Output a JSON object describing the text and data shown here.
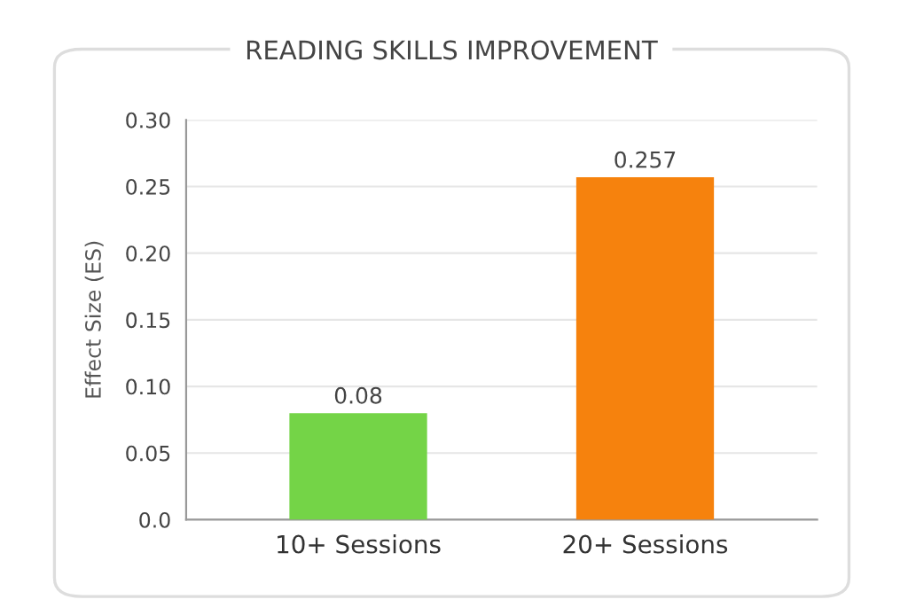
{
  "chart_data": {
    "type": "bar",
    "title": "READING SKILLS IMPROVEMENT",
    "ylabel": "Effect Size (ES)",
    "categories": [
      "10+ Sessions",
      "20+ Sessions"
    ],
    "values": [
      0.08,
      0.257
    ],
    "colors": [
      "#74d447",
      "#f6820d"
    ],
    "ylim": [
      0,
      0.3
    ],
    "yticks": [
      {
        "value": 0,
        "label": "0.0"
      },
      0.05,
      {
        "value": 0.1,
        "label": "0.10"
      },
      0.15,
      {
        "value": 0.2,
        "label": "0.20"
      },
      0.25,
      {
        "value": 0.3,
        "label": "0.30"
      }
    ],
    "grid": "y",
    "data_labels": true
  }
}
